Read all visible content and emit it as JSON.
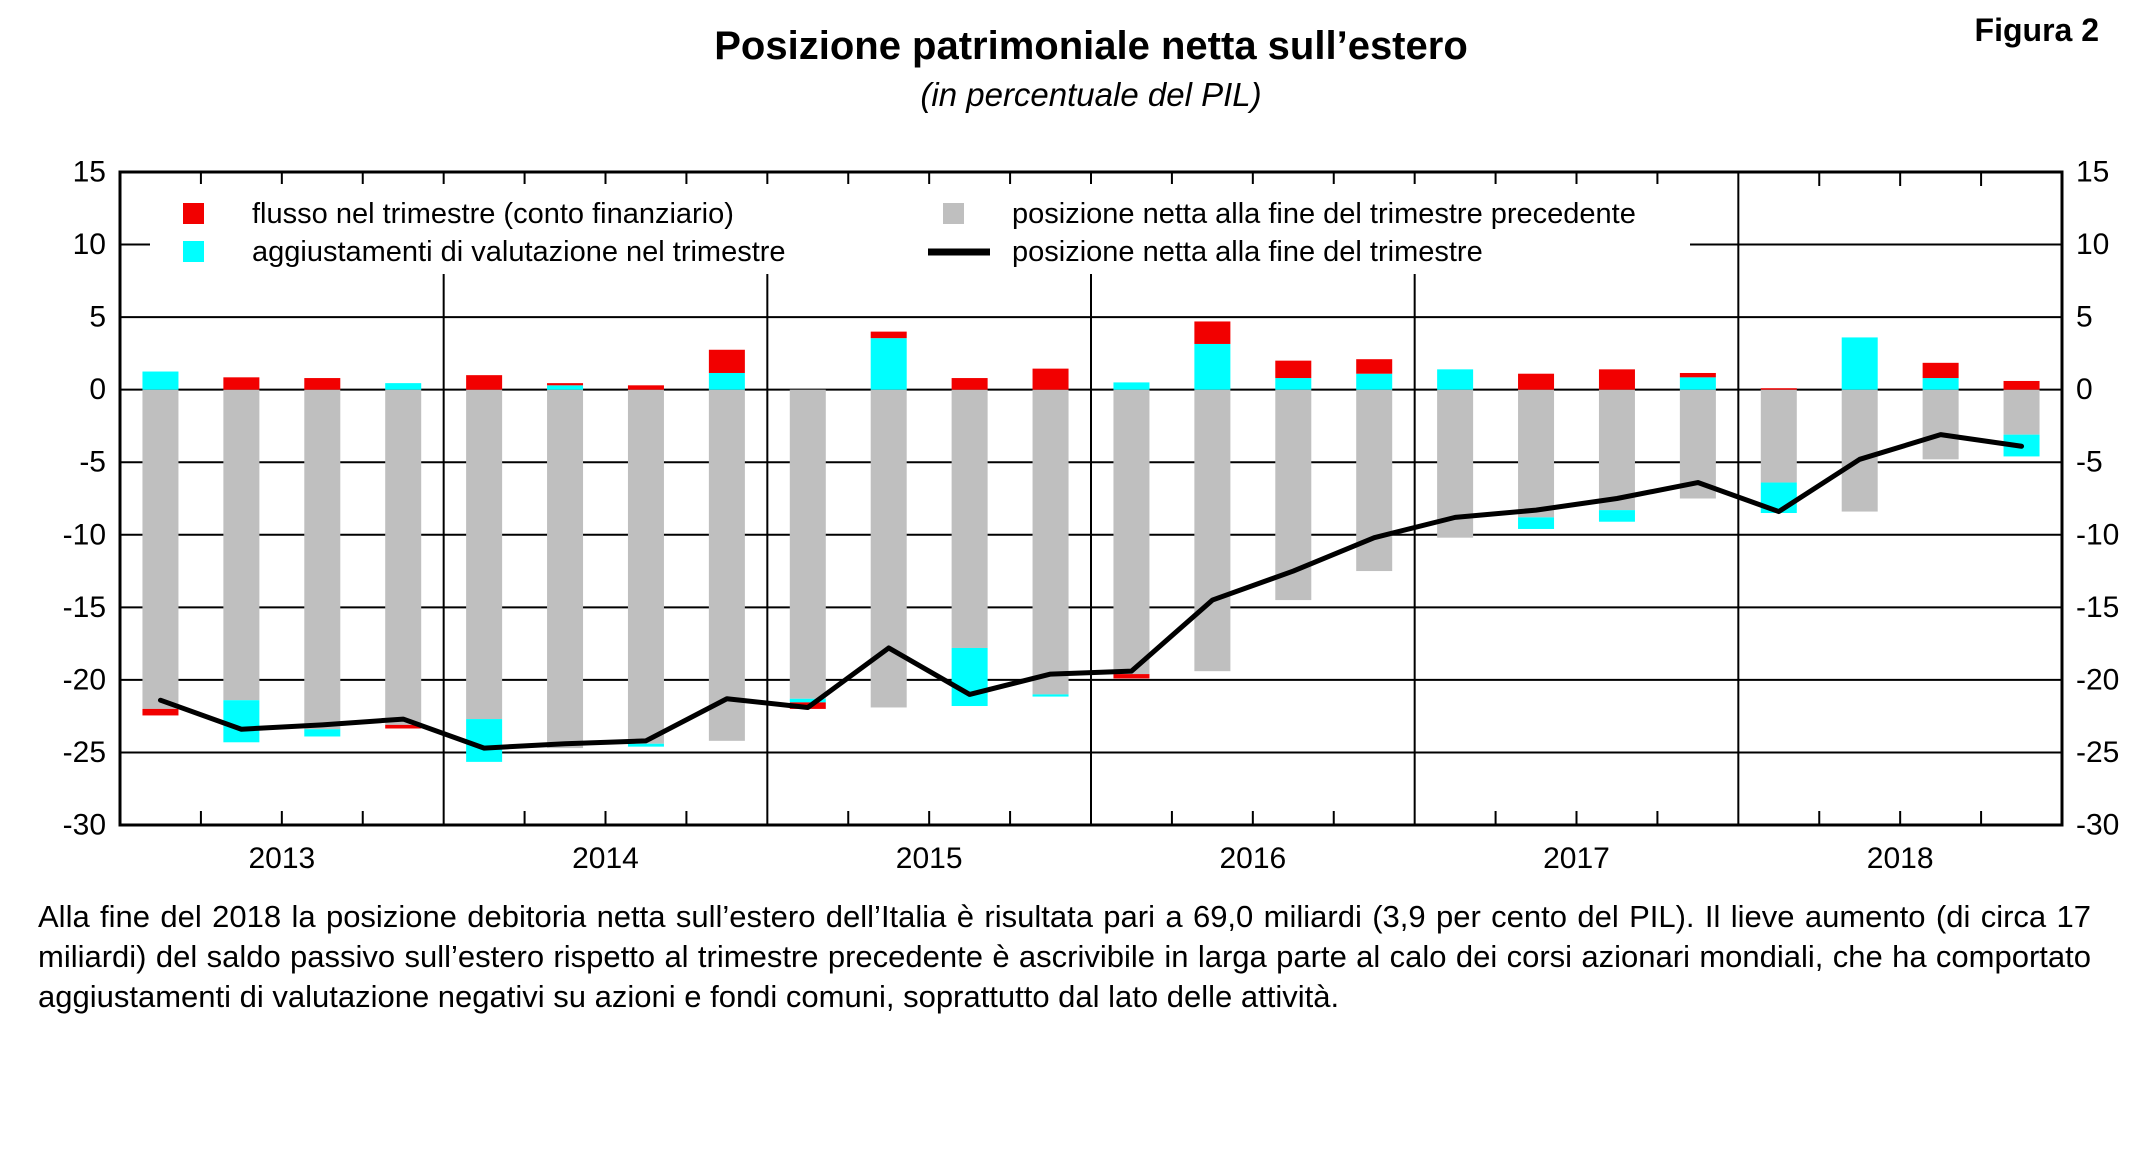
{
  "header": {
    "figure_label": "Figura 2",
    "title": "Posizione patrimoniale netta sull’estero",
    "subtitle": "(in percentuale del PIL)"
  },
  "caption": {
    "text": "Alla fine del 2018 la posizione debitoria netta sull’estero dell’Italia è risultata pari a 69,0 miliardi (3,9 per cento del PIL). Il lieve aumento (di circa 17 miliardi) del saldo passivo sull’estero rispetto al trimestre precedente è ascrivibile in larga parte al calo dei corsi azionari mondiali, che ha comportato aggiustamenti di valutazione negativi su azioni e fondi comuni, soprattutto dal lato delle attività."
  },
  "colors": {
    "flow_red": "#f20000",
    "valuation_cyan": "#00ffff",
    "previous_gray": "#bfbfbf",
    "line_black": "#000000",
    "frame": "#000000",
    "background": "#ffffff"
  },
  "chart_data": {
    "type": "bar",
    "subtype": "stacked-bars-with-line",
    "title": "Posizione patrimoniale netta sull’estero",
    "subtitle": "(in percentuale del PIL)",
    "ylabel": "",
    "xlabel": "",
    "ylim": [
      -30,
      15
    ],
    "yticks": [
      15,
      10,
      5,
      0,
      -5,
      -10,
      -15,
      -20,
      -25,
      -30
    ],
    "grid": true,
    "years": [
      "2013",
      "2014",
      "2015",
      "2016",
      "2017",
      "2018"
    ],
    "quarters": [
      "2013Q1",
      "2013Q2",
      "2013Q3",
      "2013Q4",
      "2014Q1",
      "2014Q2",
      "2014Q3",
      "2014Q4",
      "2015Q1",
      "2015Q2",
      "2015Q3",
      "2015Q4",
      "2016Q1",
      "2016Q2",
      "2016Q3",
      "2016Q4",
      "2017Q1",
      "2017Q2",
      "2017Q3",
      "2017Q4",
      "2018Q1",
      "2018Q2",
      "2018Q3",
      "2018Q4"
    ],
    "legend_position": "top-left-inside",
    "series": [
      {
        "id": "flow",
        "name": "flusso nel trimestre (conto finanziario)",
        "type": "bar",
        "color_key": "flow_red",
        "values": [
          -0.45,
          0.85,
          0.8,
          -0.25,
          1.0,
          0.15,
          0.3,
          1.6,
          -0.45,
          0.45,
          0.8,
          1.45,
          -0.3,
          1.55,
          1.2,
          1.0,
          0,
          1.1,
          1.4,
          0.3,
          0.1,
          0,
          1.05,
          0.6
        ]
      },
      {
        "id": "valuation",
        "name": "aggiustamenti di valutazione nel trimestre",
        "type": "bar",
        "color_key": "valuation_cyan",
        "values": [
          1.25,
          -2.9,
          -0.5,
          0.45,
          -2.95,
          0.3,
          -0.2,
          1.15,
          -0.25,
          3.55,
          -4.0,
          -0.15,
          0.5,
          3.15,
          0.8,
          1.1,
          1.4,
          -0.8,
          -0.8,
          0.85,
          -2.1,
          3.6,
          0.8,
          -1.5
        ]
      },
      {
        "id": "prev_position",
        "name": "posizione netta alla fine del trimestre precedente",
        "type": "bar",
        "color_key": "previous_gray",
        "values": [
          -22.0,
          -21.4,
          -23.4,
          -23.1,
          -22.7,
          -24.7,
          -24.4,
          -24.2,
          -21.3,
          -21.9,
          -17.8,
          -21.0,
          -19.6,
          -19.4,
          -14.5,
          -12.5,
          -10.2,
          -8.8,
          -8.3,
          -7.5,
          -6.4,
          -8.4,
          -4.8,
          -3.1
        ]
      },
      {
        "id": "position",
        "name": "posizione netta alla fine del trimestre",
        "type": "line",
        "color_key": "line_black",
        "values": [
          -21.4,
          -23.4,
          -23.1,
          -22.7,
          -24.7,
          -24.4,
          -24.2,
          -21.3,
          -21.9,
          -17.8,
          -21.0,
          -19.6,
          -19.4,
          -14.5,
          -12.5,
          -10.2,
          -8.8,
          -8.3,
          -7.5,
          -6.4,
          -8.4,
          -4.8,
          -3.1,
          -3.9
        ]
      }
    ]
  }
}
